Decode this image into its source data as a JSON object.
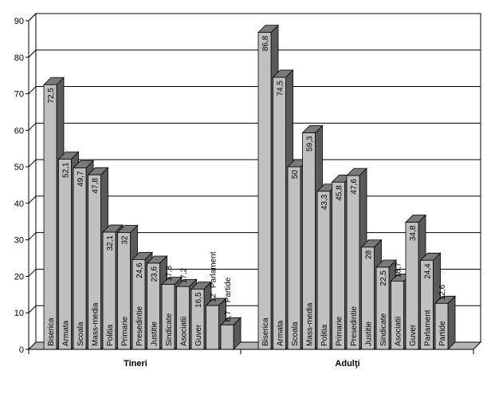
{
  "chart_data": {
    "type": "bar",
    "title": "",
    "xlabel": "",
    "ylabel": "",
    "ylim": [
      0,
      90
    ],
    "yticks": [
      0,
      10,
      20,
      30,
      40,
      50,
      60,
      70,
      80,
      90
    ],
    "grid": true,
    "bar_color": "#c0c0c0",
    "groups": [
      {
        "label": "Tineri",
        "bars": [
          {
            "label": "Biserica",
            "value": 72.5,
            "text": "72,5"
          },
          {
            "label": "Armata",
            "value": 52.1,
            "text": "52,1"
          },
          {
            "label": "Scoala",
            "value": 49.7,
            "text": "49,7"
          },
          {
            "label": "Mass-media",
            "value": 47.8,
            "text": "47,8"
          },
          {
            "label": "Politia",
            "value": 32.1,
            "text": "32,1"
          },
          {
            "label": "Primarie",
            "value": 32,
            "text": "32"
          },
          {
            "label": "Presedintie",
            "value": 24.6,
            "text": "24,6"
          },
          {
            "label": "Justitie",
            "value": 23.6,
            "text": "23,6"
          },
          {
            "label": "Sindicate",
            "value": 17.8,
            "text": "17,8"
          },
          {
            "label": "Asociatii",
            "value": 17.2,
            "text": "17,2"
          },
          {
            "label": "Guver",
            "value": 16.5,
            "text": "16,5"
          },
          {
            "label": "Parlament",
            "value": 12,
            "text": "12"
          },
          {
            "label": "Partide",
            "value": 6.7,
            "text": "6,7"
          }
        ]
      },
      {
        "label": "Adulţi",
        "bars": [
          {
            "label": "Biserica",
            "value": 86.8,
            "text": "86,8"
          },
          {
            "label": "Armata",
            "value": 74.5,
            "text": "74,5"
          },
          {
            "label": "Scoala",
            "value": 50,
            "text": "50"
          },
          {
            "label": "Mass-media",
            "value": 59.3,
            "text": "59,3"
          },
          {
            "label": "Politia",
            "value": 43.3,
            "text": "43,3"
          },
          {
            "label": "Primarie",
            "value": 45.8,
            "text": "45,8"
          },
          {
            "label": "Presedintie",
            "value": 47.6,
            "text": "47,6"
          },
          {
            "label": "Justitie",
            "value": 28,
            "text": "28"
          },
          {
            "label": "Sindicate",
            "value": 22.5,
            "text": "22,5"
          },
          {
            "label": "Asociatii",
            "value": 18.7,
            "text": "18,7"
          },
          {
            "label": "Guver",
            "value": 34.8,
            "text": "34,8"
          },
          {
            "label": "Parlament",
            "value": 24.4,
            "text": "24,4"
          },
          {
            "label": "Partide",
            "value": 12.6,
            "text": "12,6"
          }
        ]
      }
    ]
  }
}
